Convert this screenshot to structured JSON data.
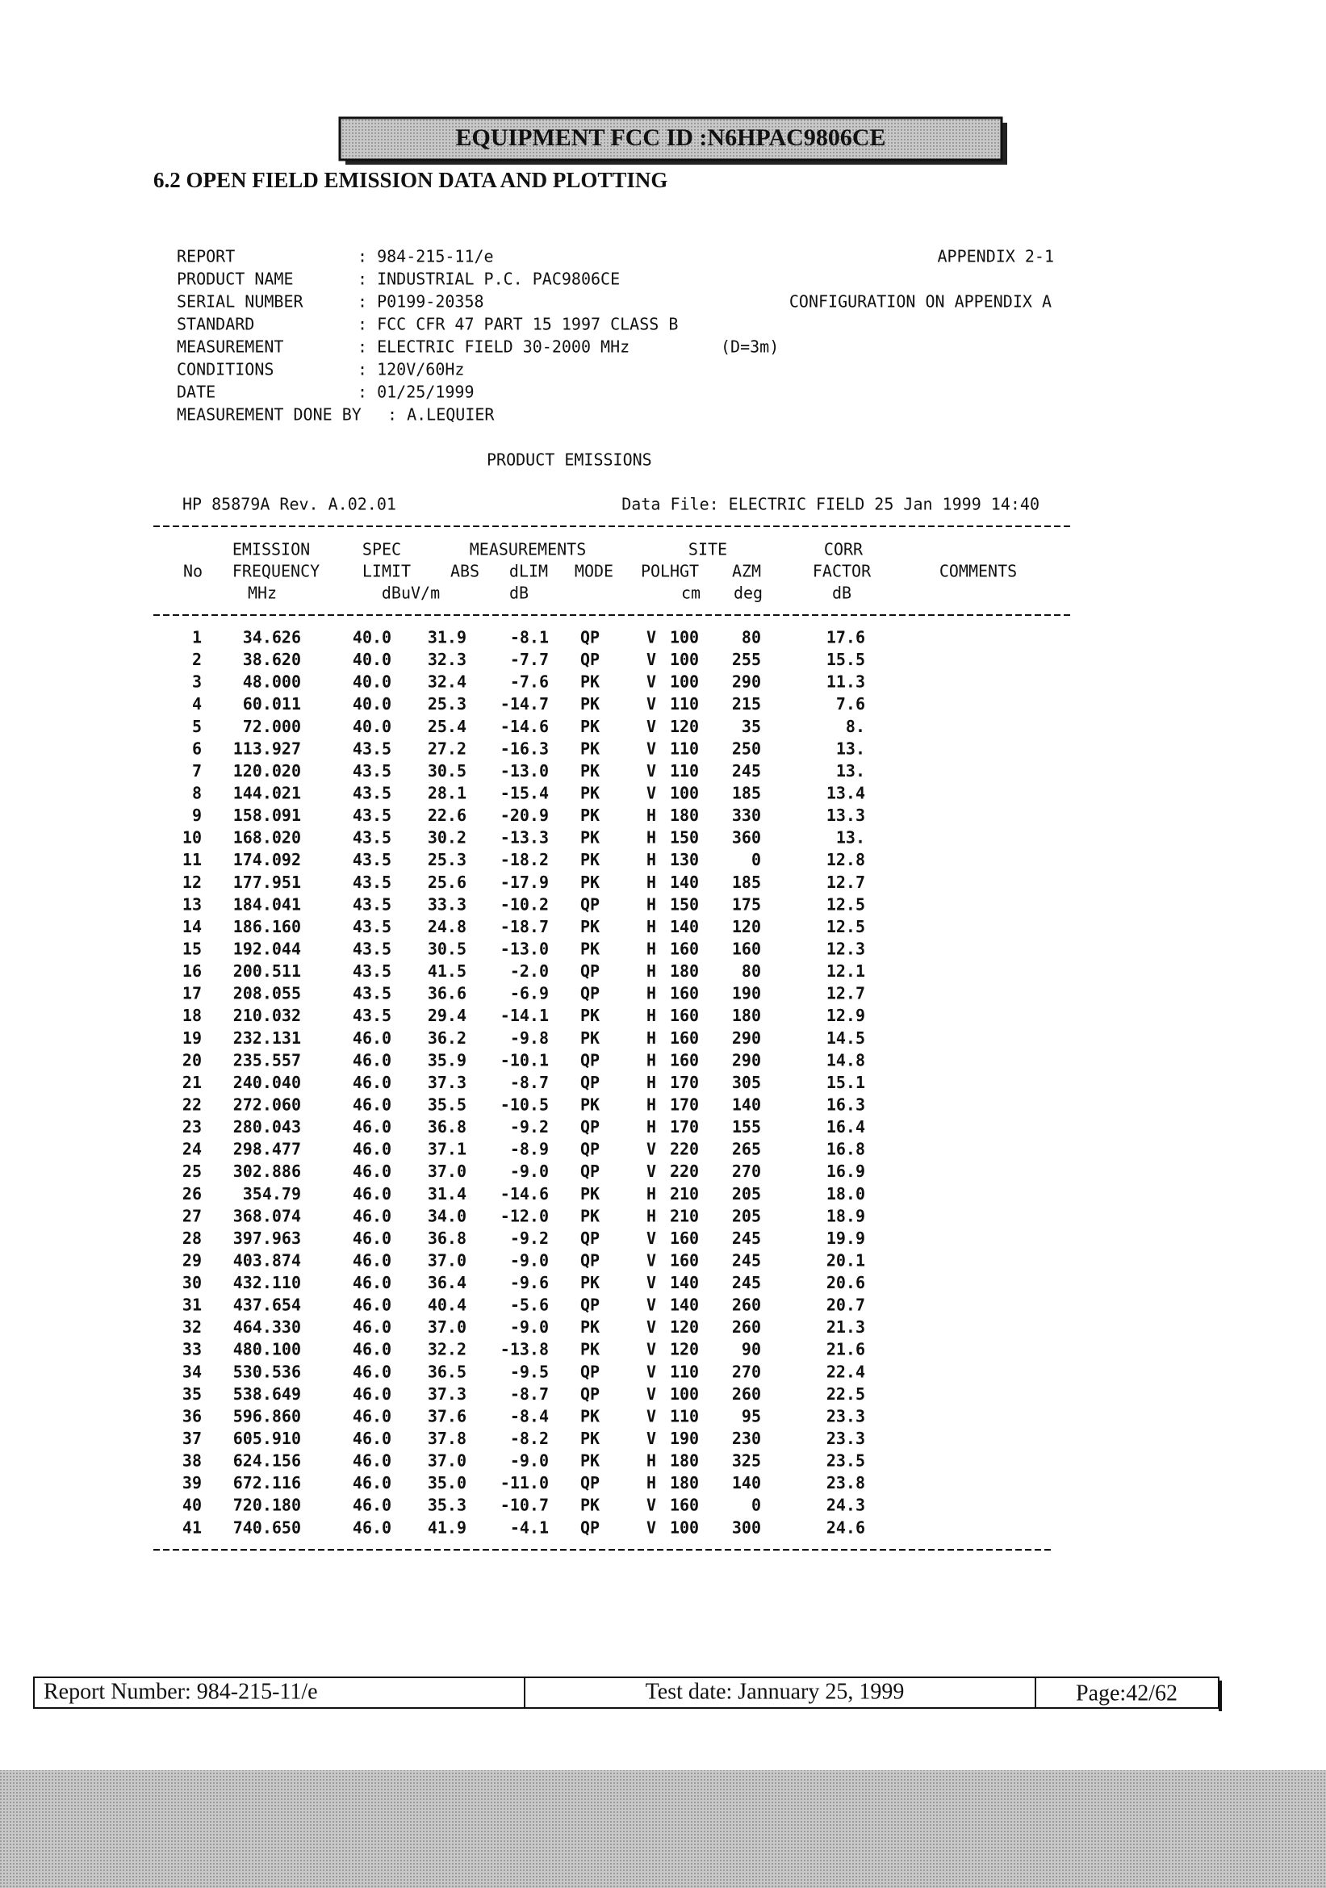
{
  "header": {
    "fcc_id": "EQUIPMENT FCC ID :N6HPAC9806CE",
    "section_title": "6.2 OPEN FIELD EMISSION DATA AND PLOTTING"
  },
  "info": {
    "rows": [
      [
        "REPORT",
        ": 984-215-11/e"
      ],
      [
        "PRODUCT NAME",
        ": INDUSTRIAL P.C. PAC9806CE"
      ],
      [
        "SERIAL NUMBER",
        ": P0199-20358"
      ],
      [
        "STANDARD",
        ": FCC CFR 47 PART 15 1997 CLASS B"
      ],
      [
        "MEASUREMENT",
        ": ELECTRIC FIELD 30-2000 MHz"
      ],
      [
        "CONDITIONS",
        ": 120V/60Hz"
      ],
      [
        "DATE",
        ": 01/25/1999"
      ],
      [
        "MEASUREMENT DONE BY",
        ": A.LEQUIER"
      ]
    ],
    "appendix": "APPENDIX 2-1",
    "configuration": "CONFIGURATION ON APPENDIX A",
    "distance": "(D=3m)"
  },
  "product_emissions": "PRODUCT EMISSIONS",
  "instrument": "HP 85879A Rev. A.02.01",
  "data_file": "Data File: ELECTRIC FIELD  25 Jan 1999 14:40",
  "table": {
    "header_rows": [
      [
        "EMISSION",
        "SPEC",
        "MEASUREMENTS",
        "SITE",
        "CORR"
      ],
      [
        "No",
        "FREQUENCY",
        "LIMIT",
        "ABS",
        "dLIM",
        "MODE",
        "POL",
        "HGT",
        "AZM",
        "FACTOR",
        "COMMENTS"
      ],
      [
        "MHz",
        "dBuV/m",
        "dB",
        "cm",
        "deg",
        "dB"
      ]
    ],
    "rows": [
      [
        "1",
        "34.626",
        "40.0",
        "31.9",
        "-8.1",
        "QP",
        "V",
        "100",
        "80",
        "17.6"
      ],
      [
        "2",
        "38.620",
        "40.0",
        "32.3",
        "-7.7",
        "QP",
        "V",
        "100",
        "255",
        "15.5"
      ],
      [
        "3",
        "48.000",
        "40.0",
        "32.4",
        "-7.6",
        "PK",
        "V",
        "100",
        "290",
        "11.3"
      ],
      [
        "4",
        "60.011",
        "40.0",
        "25.3",
        "-14.7",
        "PK",
        "V",
        "110",
        "215",
        "7.6"
      ],
      [
        "5",
        "72.000",
        "40.0",
        "25.4",
        "-14.6",
        "PK",
        "V",
        "120",
        "35",
        "8."
      ],
      [
        "6",
        "113.927",
        "43.5",
        "27.2",
        "-16.3",
        "PK",
        "V",
        "110",
        "250",
        "13."
      ],
      [
        "7",
        "120.020",
        "43.5",
        "30.5",
        "-13.0",
        "PK",
        "V",
        "110",
        "245",
        "13."
      ],
      [
        "8",
        "144.021",
        "43.5",
        "28.1",
        "-15.4",
        "PK",
        "V",
        "100",
        "185",
        "13.4"
      ],
      [
        "9",
        "158.091",
        "43.5",
        "22.6",
        "-20.9",
        "PK",
        "H",
        "180",
        "330",
        "13.3"
      ],
      [
        "10",
        "168.020",
        "43.5",
        "30.2",
        "-13.3",
        "PK",
        "H",
        "150",
        "360",
        "13."
      ],
      [
        "11",
        "174.092",
        "43.5",
        "25.3",
        "-18.2",
        "PK",
        "H",
        "130",
        "0",
        "12.8"
      ],
      [
        "12",
        "177.951",
        "43.5",
        "25.6",
        "-17.9",
        "PK",
        "H",
        "140",
        "185",
        "12.7"
      ],
      [
        "13",
        "184.041",
        "43.5",
        "33.3",
        "-10.2",
        "QP",
        "H",
        "150",
        "175",
        "12.5"
      ],
      [
        "14",
        "186.160",
        "43.5",
        "24.8",
        "-18.7",
        "PK",
        "H",
        "140",
        "120",
        "12.5"
      ],
      [
        "15",
        "192.044",
        "43.5",
        "30.5",
        "-13.0",
        "PK",
        "H",
        "160",
        "160",
        "12.3"
      ],
      [
        "16",
        "200.511",
        "43.5",
        "41.5",
        "-2.0",
        "QP",
        "H",
        "180",
        "80",
        "12.1"
      ],
      [
        "17",
        "208.055",
        "43.5",
        "36.6",
        "-6.9",
        "QP",
        "H",
        "160",
        "190",
        "12.7"
      ],
      [
        "18",
        "210.032",
        "43.5",
        "29.4",
        "-14.1",
        "PK",
        "H",
        "160",
        "180",
        "12.9"
      ],
      [
        "19",
        "232.131",
        "46.0",
        "36.2",
        "-9.8",
        "PK",
        "H",
        "160",
        "290",
        "14.5"
      ],
      [
        "20",
        "235.557",
        "46.0",
        "35.9",
        "-10.1",
        "QP",
        "H",
        "160",
        "290",
        "14.8"
      ],
      [
        "21",
        "240.040",
        "46.0",
        "37.3",
        "-8.7",
        "QP",
        "H",
        "170",
        "305",
        "15.1"
      ],
      [
        "22",
        "272.060",
        "46.0",
        "35.5",
        "-10.5",
        "PK",
        "H",
        "170",
        "140",
        "16.3"
      ],
      [
        "23",
        "280.043",
        "46.0",
        "36.8",
        "-9.2",
        "QP",
        "H",
        "170",
        "155",
        "16.4"
      ],
      [
        "24",
        "298.477",
        "46.0",
        "37.1",
        "-8.9",
        "QP",
        "V",
        "220",
        "265",
        "16.8"
      ],
      [
        "25",
        "302.886",
        "46.0",
        "37.0",
        "-9.0",
        "QP",
        "V",
        "220",
        "270",
        "16.9"
      ],
      [
        "26",
        "354.79",
        "46.0",
        "31.4",
        "-14.6",
        "PK",
        "H",
        "210",
        "205",
        "18.0"
      ],
      [
        "27",
        "368.074",
        "46.0",
        "34.0",
        "-12.0",
        "PK",
        "H",
        "210",
        "205",
        "18.9"
      ],
      [
        "28",
        "397.963",
        "46.0",
        "36.8",
        "-9.2",
        "QP",
        "V",
        "160",
        "245",
        "19.9"
      ],
      [
        "29",
        "403.874",
        "46.0",
        "37.0",
        "-9.0",
        "QP",
        "V",
        "160",
        "245",
        "20.1"
      ],
      [
        "30",
        "432.110",
        "46.0",
        "36.4",
        "-9.6",
        "PK",
        "V",
        "140",
        "245",
        "20.6"
      ],
      [
        "31",
        "437.654",
        "46.0",
        "40.4",
        "-5.6",
        "QP",
        "V",
        "140",
        "260",
        "20.7"
      ],
      [
        "32",
        "464.330",
        "46.0",
        "37.0",
        "-9.0",
        "PK",
        "V",
        "120",
        "260",
        "21.3"
      ],
      [
        "33",
        "480.100",
        "46.0",
        "32.2",
        "-13.8",
        "PK",
        "V",
        "120",
        "90",
        "21.6"
      ],
      [
        "34",
        "530.536",
        "46.0",
        "36.5",
        "-9.5",
        "QP",
        "V",
        "110",
        "270",
        "22.4"
      ],
      [
        "35",
        "538.649",
        "46.0",
        "37.3",
        "-8.7",
        "QP",
        "V",
        "100",
        "260",
        "22.5"
      ],
      [
        "36",
        "596.860",
        "46.0",
        "37.6",
        "-8.4",
        "PK",
        "V",
        "110",
        "95",
        "23.3"
      ],
      [
        "37",
        "605.910",
        "46.0",
        "37.8",
        "-8.2",
        "PK",
        "V",
        "190",
        "230",
        "23.3"
      ],
      [
        "38",
        "624.156",
        "46.0",
        "37.0",
        "-9.0",
        "PK",
        "H",
        "180",
        "325",
        "23.5"
      ],
      [
        "39",
        "672.116",
        "46.0",
        "35.0",
        "-11.0",
        "QP",
        "H",
        "180",
        "140",
        "23.8"
      ],
      [
        "40",
        "720.180",
        "46.0",
        "35.3",
        "-10.7",
        "PK",
        "V",
        "160",
        "0",
        "24.3"
      ],
      [
        "41",
        "740.650",
        "46.0",
        "41.9",
        "-4.1",
        "QP",
        "V",
        "100",
        "300",
        "24.6"
      ]
    ]
  },
  "footer": {
    "report_number": "Report Number: 984-215-11/e",
    "test_date": "Test date: Jannuary  25, 1999",
    "page": "Page:42/62"
  }
}
